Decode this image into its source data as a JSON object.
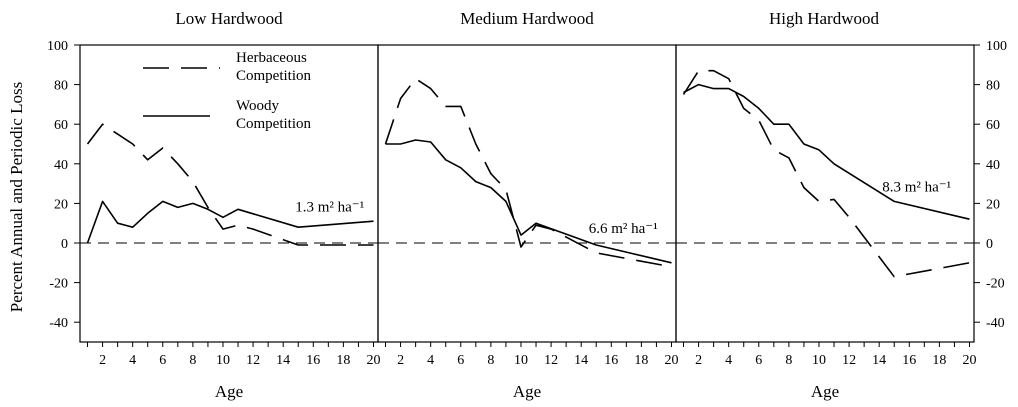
{
  "chart_data": [
    {
      "type": "line",
      "title": "Low Hardwood",
      "xlabel": "Age",
      "ylabel": "Percent Annual and Periodic Loss",
      "xlim": [
        0.5,
        20.3
      ],
      "ylim": [
        -50,
        100
      ],
      "xticks": [
        2,
        4,
        6,
        8,
        10,
        12,
        14,
        16,
        18,
        20
      ],
      "yticks": [
        -40,
        -20,
        0,
        20,
        40,
        60,
        80,
        100
      ],
      "annotation": {
        "text": "1.3 m² ha⁻¹",
        "x": 14.8,
        "y": 16
      },
      "series": [
        {
          "name": "Herbaceous Competition",
          "style": "dashed",
          "x": [
            1,
            2,
            3,
            4,
            5,
            6,
            7,
            8,
            9,
            10,
            11,
            12,
            15,
            20
          ],
          "y": [
            50,
            60,
            55,
            50,
            42,
            48,
            40,
            31,
            18,
            7,
            9,
            7,
            -1,
            -1
          ]
        },
        {
          "name": "Woody Competition",
          "style": "solid",
          "x": [
            1,
            2,
            3,
            4,
            5,
            6,
            7,
            8,
            9,
            10,
            11,
            15,
            20
          ],
          "y": [
            0,
            21,
            10,
            8,
            15,
            21,
            18,
            20,
            17,
            13,
            17,
            8,
            11
          ]
        }
      ]
    },
    {
      "type": "line",
      "title": "Medium Hardwood",
      "xlabel": "Age",
      "xlim": [
        0.5,
        20.3
      ],
      "ylim": [
        -50,
        100
      ],
      "xticks": [
        2,
        4,
        6,
        8,
        10,
        12,
        14,
        16,
        18,
        20
      ],
      "annotation": {
        "text": "6.6 m² ha⁻¹",
        "x": 14.5,
        "y": 5
      },
      "series": [
        {
          "name": "Herbaceous Competition",
          "style": "dashed",
          "x": [
            1,
            2,
            3,
            4,
            5,
            6,
            7,
            8,
            9,
            10,
            11,
            12,
            15,
            20
          ],
          "y": [
            50,
            73,
            83,
            78,
            69,
            69,
            50,
            35,
            27,
            -2,
            9,
            7,
            -5,
            -12
          ]
        },
        {
          "name": "Woody Competition",
          "style": "solid",
          "x": [
            1,
            2,
            3,
            4,
            5,
            6,
            7,
            8,
            9,
            10,
            11,
            15,
            20
          ],
          "y": [
            50,
            50,
            52,
            51,
            42,
            38,
            31,
            28,
            21,
            4,
            10,
            -1,
            -10
          ]
        }
      ]
    },
    {
      "type": "line",
      "title": "High Hardwood",
      "xlabel": "Age",
      "xlim": [
        0.5,
        20.3
      ],
      "ylim": [
        -50,
        100
      ],
      "xticks": [
        2,
        4,
        6,
        8,
        10,
        12,
        14,
        16,
        18,
        20
      ],
      "yticks": [
        -40,
        -20,
        0,
        20,
        40,
        60,
        80,
        100
      ],
      "annotation": {
        "text": "8.3 m² ha⁻¹",
        "x": 14.2,
        "y": 26
      },
      "series": [
        {
          "name": "Herbaceous Competition",
          "style": "dashed",
          "x": [
            1,
            2,
            3,
            4,
            5,
            6,
            7,
            8,
            9,
            10,
            11,
            12,
            15,
            20
          ],
          "y": [
            75,
            87,
            87,
            83,
            68,
            62,
            47,
            43,
            28,
            21,
            22,
            13,
            -17,
            -10
          ]
        },
        {
          "name": "Woody Competition",
          "style": "solid",
          "x": [
            1,
            2,
            3,
            4,
            5,
            6,
            7,
            8,
            9,
            10,
            11,
            15,
            20
          ],
          "y": [
            76,
            80,
            78,
            78,
            74,
            68,
            60,
            60,
            50,
            47,
            40,
            21,
            12
          ]
        }
      ]
    }
  ],
  "legend": [
    {
      "label_line1": "Herbaceous",
      "label_line2": "Competition",
      "style": "dashed"
    },
    {
      "label_line1": "Woody",
      "label_line2": "Competition",
      "style": "solid"
    }
  ]
}
